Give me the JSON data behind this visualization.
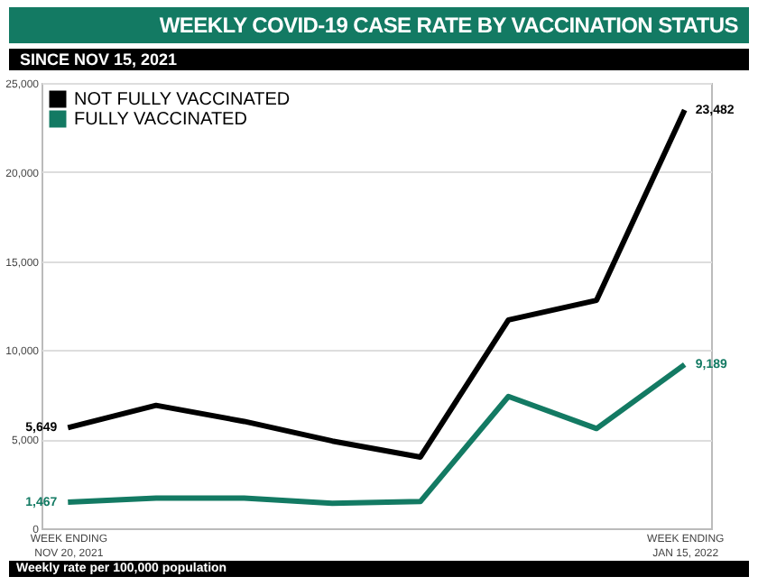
{
  "chart_data": {
    "type": "line",
    "title": "WEEKLY COVID-19 CASE RATE BY VACCINATION STATUS",
    "subtitle": "SINCE NOV 15, 2021",
    "categories": [
      "WEEK ENDING NOV 20, 2021",
      null,
      null,
      null,
      null,
      null,
      null,
      "WEEK ENDING JAN 15, 2022"
    ],
    "series": [
      {
        "name": "NOT FULLY VACCINATED",
        "color": "#000000",
        "values": [
          5649,
          6900,
          6000,
          4900,
          4000,
          11700,
          12800,
          23482
        ],
        "value_labels": [
          "5,649",
          null,
          null,
          null,
          null,
          null,
          null,
          "23,482"
        ]
      },
      {
        "name": "FULLY VACCINATED",
        "color": "#137a63",
        "values": [
          1467,
          1700,
          1700,
          1400,
          1500,
          7400,
          5600,
          9189
        ],
        "value_labels": [
          "1,467",
          null,
          null,
          null,
          null,
          null,
          null,
          "9,189"
        ]
      }
    ],
    "ylim": [
      0,
      25000
    ],
    "yticks": [
      0,
      {
        "value": 5000,
        "label": "5,000"
      },
      {
        "value": 10000,
        "label": "10,000"
      },
      {
        "value": 15000,
        "label": "15,000"
      },
      {
        "value": 20000,
        "label": "20,000"
      },
      {
        "value": 25000,
        "label": "25,000"
      }
    ],
    "grid": "y",
    "legend": "top left",
    "line_style": "solid",
    "marker": "none",
    "annotations": [
      "Weekly rate per 100,000 population"
    ]
  }
}
